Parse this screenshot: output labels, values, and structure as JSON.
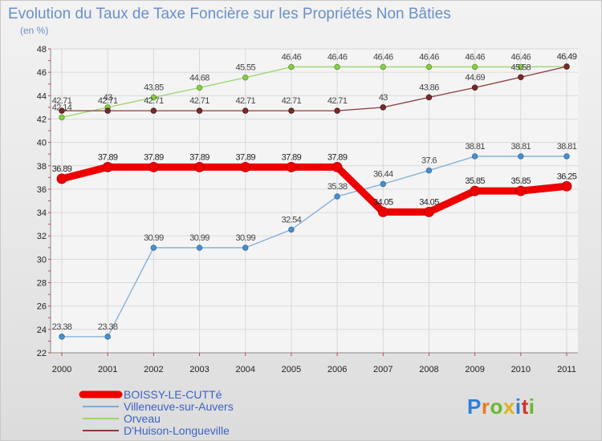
{
  "chart_data": {
    "type": "line",
    "title": "Evolution du Taux de Taxe Foncière sur les Propriétés Non Bâties",
    "subtitle": "(en %)",
    "xlabel": "",
    "ylabel": "",
    "categories": [
      "2000",
      "2001",
      "2002",
      "2003",
      "2004",
      "2005",
      "2006",
      "2007",
      "2008",
      "2009",
      "2010",
      "2011"
    ],
    "ylim": [
      22,
      48
    ],
    "yticks": [
      "22",
      "24",
      "26",
      "28",
      "30",
      "32",
      "34",
      "36",
      "38",
      "40",
      "42",
      "44",
      "46",
      "48"
    ],
    "grid": true,
    "legend_position": "bottom-left",
    "series": [
      {
        "name": "BOISSY-LE-CUTTé",
        "color": "#ee0000",
        "values": [
          36.89,
          37.89,
          37.89,
          37.89,
          37.89,
          37.89,
          37.89,
          34.05,
          34.05,
          35.85,
          35.85,
          36.25
        ],
        "labels": [
          "36.89",
          "37.89",
          "37.89",
          "37.89",
          "37.89",
          "37.89",
          "37.89",
          "34.05",
          "34.05",
          "35.85",
          "35.85",
          "36.25"
        ]
      },
      {
        "name": "Villeneuve-sur-Auvers",
        "color": "#7fadd6",
        "values": [
          23.38,
          23.38,
          30.99,
          30.99,
          30.99,
          32.54,
          35.38,
          36.44,
          37.6,
          38.81,
          38.81,
          38.81
        ],
        "labels": [
          "23.38",
          "23.38",
          "30.99",
          "30.99",
          "30.99",
          "32.54",
          "35.38",
          "36.44",
          "37.6",
          "38.81",
          "38.81",
          "38.81"
        ]
      },
      {
        "name": "Orveau",
        "color": "#99d66a",
        "values": [
          42.14,
          43,
          43.85,
          44.68,
          45.55,
          46.46,
          46.46,
          46.46,
          46.46,
          46.46,
          46.46,
          46.49
        ],
        "labels": [
          "42.14",
          "43",
          "43.85",
          "44.68",
          "45.55",
          "46.46",
          "46.46",
          "46.46",
          "46.46",
          "46.46",
          "46.46",
          "46.49"
        ]
      },
      {
        "name": "D'Huison-Longueville",
        "color": "#8b3a3a",
        "values": [
          42.71,
          42.71,
          42.71,
          42.71,
          42.71,
          42.71,
          42.71,
          43,
          43.86,
          44.69,
          45.58,
          46.49
        ],
        "labels": [
          "42.71",
          "42.71",
          "42.71",
          "42.71",
          "42.71",
          "42.71",
          "42.71",
          "43",
          "43.86",
          "44.69",
          "45.58",
          "46.49"
        ]
      }
    ]
  },
  "brand": {
    "logo_text": "Proxiti",
    "letter_colors": [
      "#2f7fd6",
      "#e87a1e",
      "#6ab72f",
      "#e0b21c",
      "#2f7fd6",
      "#d0352b",
      "#6ab72f"
    ]
  }
}
